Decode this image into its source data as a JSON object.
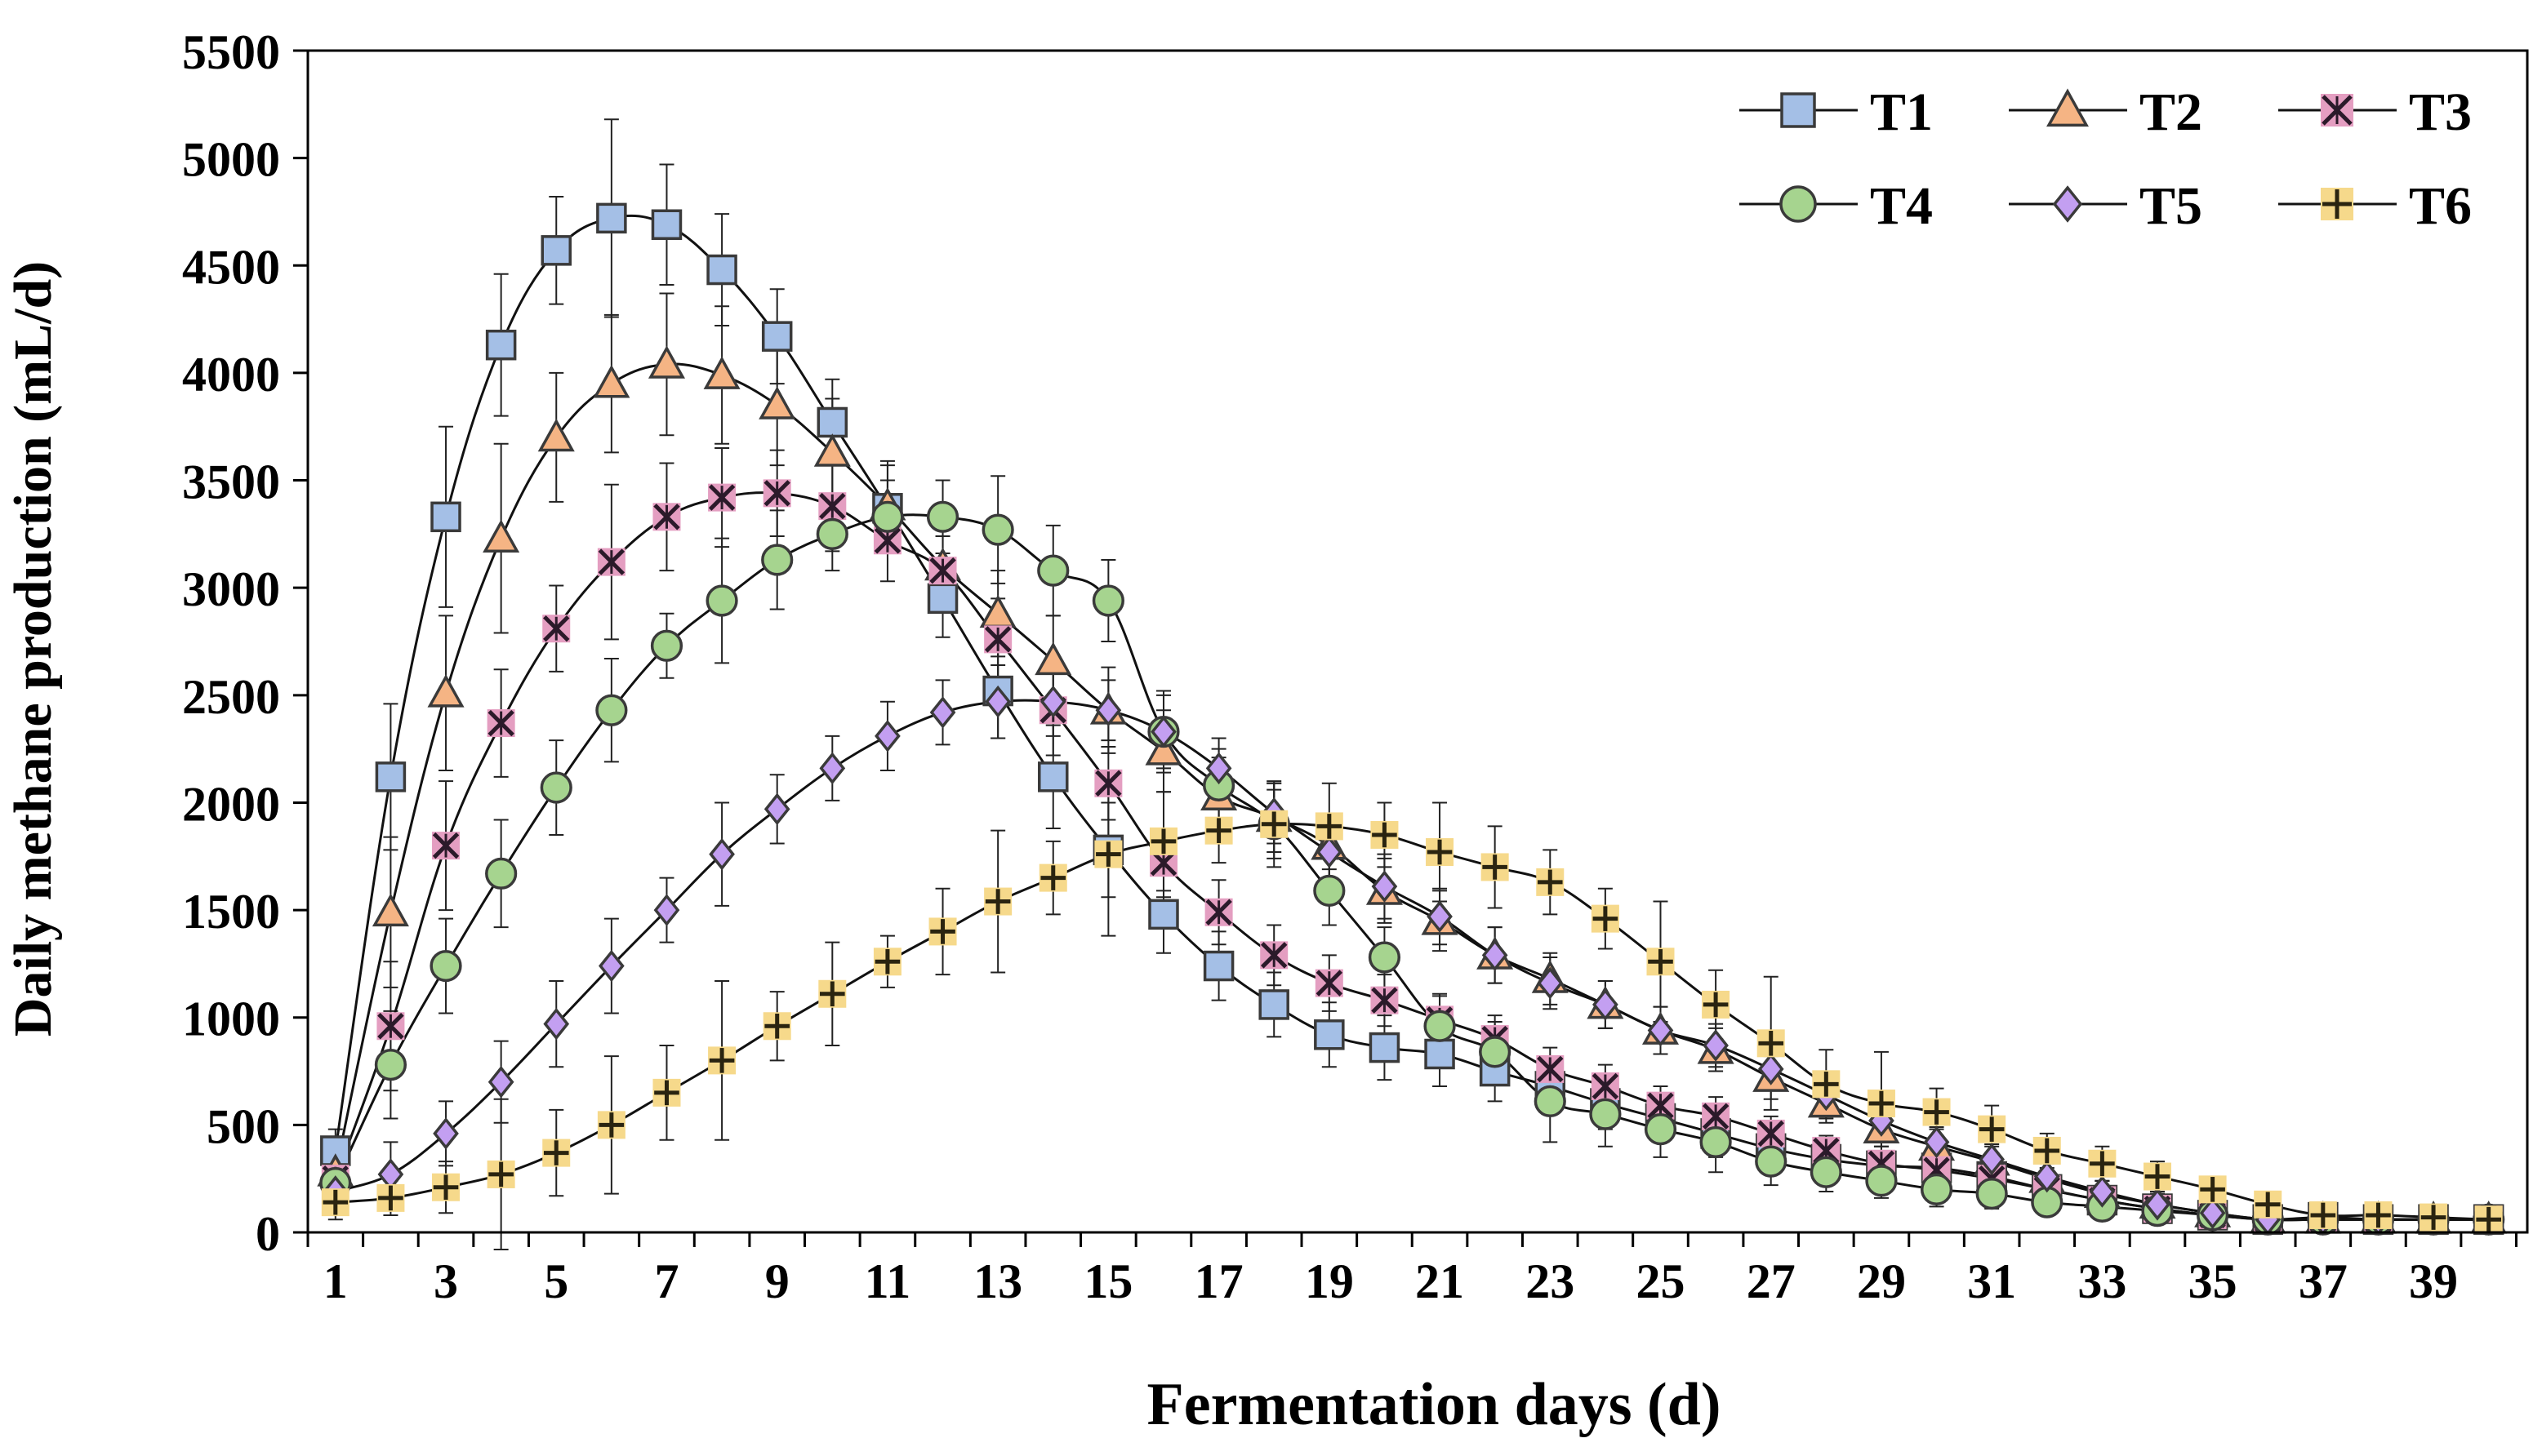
{
  "chart_data": {
    "type": "line",
    "title": "",
    "xlabel": "Fermentation days (d)",
    "ylabel": "Daily methane production (mL/d)",
    "xlim": [
      0.5,
      40.7
    ],
    "ylim": [
      0,
      5500
    ],
    "x_ticks": [
      1,
      3,
      5,
      7,
      9,
      11,
      13,
      15,
      17,
      19,
      21,
      23,
      25,
      27,
      29,
      31,
      33,
      35,
      37,
      39
    ],
    "y_ticks": [
      0,
      500,
      1000,
      1500,
      2000,
      2500,
      3000,
      3500,
      4000,
      4500,
      5000,
      5500
    ],
    "legend_position": "top-right",
    "grid": false,
    "x": [
      1,
      2,
      3,
      4,
      5,
      6,
      7,
      8,
      9,
      10,
      11,
      12,
      13,
      14,
      15,
      16,
      17,
      18,
      19,
      20,
      21,
      22,
      23,
      24,
      25,
      26,
      27,
      28,
      29,
      30,
      31,
      32,
      33,
      34,
      35,
      36,
      37,
      38,
      39,
      40
    ],
    "series": [
      {
        "name": "T1",
        "marker": "square",
        "fill": "#a4bfe6",
        "stroke": "#3a3a3a",
        "values": [
          380,
          2120,
          3330,
          4130,
          4570,
          4720,
          4690,
          4480,
          4170,
          3770,
          3370,
          2950,
          2520,
          2120,
          1780,
          1480,
          1240,
          1060,
          920,
          860,
          830,
          750,
          680,
          600,
          530,
          460,
          390,
          340,
          310,
          300,
          260,
          200,
          150,
          110,
          80,
          60,
          70,
          60,
          60,
          60
        ],
        "errors": [
          100,
          340,
          420,
          330,
          250,
          460,
          280,
          260,
          220,
          200,
          200,
          180,
          220,
          240,
          220,
          180,
          160,
          150,
          150,
          150,
          150,
          140,
          130,
          120,
          110,
          110,
          100,
          90,
          90,
          80,
          80,
          70,
          60,
          50,
          40,
          30,
          30,
          30,
          30,
          30
        ]
      },
      {
        "name": "T2",
        "marker": "triangle",
        "fill": "#f5b484",
        "stroke": "#3a3a3a",
        "values": [
          280,
          1490,
          2510,
          3230,
          3700,
          3950,
          4040,
          3990,
          3850,
          3630,
          3380,
          3100,
          2880,
          2660,
          2430,
          2240,
          2030,
          1930,
          1800,
          1590,
          1450,
          1290,
          1180,
          1060,
          940,
          850,
          720,
          600,
          480,
          400,
          330,
          250,
          180,
          130,
          90,
          60,
          60,
          60,
          60,
          60
        ],
        "errors": [
          120,
          350,
          360,
          440,
          300,
          320,
          330,
          320,
          280,
          250,
          210,
          190,
          200,
          210,
          200,
          190,
          180,
          160,
          150,
          150,
          140,
          130,
          120,
          110,
          110,
          100,
          100,
          90,
          80,
          80,
          70,
          70,
          60,
          50,
          40,
          30,
          30,
          30,
          30,
          30
        ]
      },
      {
        "name": "T3",
        "marker": "xstar",
        "fill": "#e49ec1",
        "stroke": "#3a3a3a",
        "values": [
          250,
          960,
          1800,
          2370,
          2810,
          3120,
          3330,
          3420,
          3440,
          3380,
          3220,
          3080,
          2760,
          2430,
          2090,
          1720,
          1490,
          1290,
          1160,
          1080,
          990,
          900,
          760,
          680,
          590,
          540,
          460,
          380,
          320,
          290,
          250,
          200,
          150,
          110,
          80,
          60,
          60,
          60,
          60,
          60
        ],
        "errors": [
          150,
          300,
          300,
          250,
          200,
          360,
          250,
          230,
          200,
          210,
          190,
          160,
          190,
          210,
          170,
          160,
          150,
          140,
          130,
          120,
          120,
          110,
          100,
          100,
          90,
          90,
          80,
          70,
          60,
          60,
          60,
          50,
          50,
          40,
          40,
          30,
          30,
          30,
          30,
          30
        ]
      },
      {
        "name": "T4",
        "marker": "circle",
        "fill": "#a6d48f",
        "stroke": "#3a3a3a",
        "values": [
          230,
          780,
          1240,
          1670,
          2070,
          2430,
          2730,
          2940,
          3130,
          3250,
          3330,
          3330,
          3270,
          3080,
          2940,
          2330,
          2080,
          1900,
          1590,
          1280,
          960,
          840,
          610,
          550,
          480,
          420,
          330,
          280,
          240,
          200,
          180,
          140,
          120,
          100,
          80,
          60,
          60,
          60,
          60,
          60
        ],
        "errors": [
          100,
          250,
          220,
          250,
          220,
          240,
          150,
          290,
          230,
          170,
          170,
          170,
          250,
          210,
          190,
          190,
          170,
          160,
          160,
          140,
          140,
          140,
          190,
          150,
          130,
          140,
          110,
          90,
          80,
          80,
          70,
          60,
          50,
          40,
          30,
          30,
          30,
          30,
          30,
          30
        ]
      },
      {
        "name": "T5",
        "marker": "diamond",
        "fill": "#c39ff1",
        "stroke": "#3a3a3a",
        "values": [
          190,
          270,
          460,
          700,
          970,
          1240,
          1500,
          1760,
          1970,
          2160,
          2310,
          2420,
          2470,
          2470,
          2430,
          2330,
          2160,
          1950,
          1770,
          1610,
          1470,
          1290,
          1160,
          1060,
          940,
          870,
          760,
          640,
          520,
          420,
          340,
          260,
          190,
          130,
          90,
          60,
          60,
          60,
          60,
          60
        ],
        "errors": [
          80,
          150,
          150,
          190,
          200,
          220,
          150,
          240,
          160,
          150,
          160,
          150,
          170,
          160,
          140,
          170,
          140,
          140,
          150,
          150,
          130,
          130,
          120,
          110,
          110,
          100,
          100,
          90,
          80,
          70,
          70,
          60,
          50,
          40,
          30,
          30,
          30,
          30,
          30,
          30
        ]
      },
      {
        "name": "T6",
        "marker": "plus",
        "fill": "#f6d98b",
        "stroke": "#3a3a3a",
        "values": [
          140,
          160,
          210,
          270,
          370,
          500,
          650,
          800,
          960,
          1110,
          1260,
          1400,
          1540,
          1650,
          1760,
          1820,
          1870,
          1900,
          1890,
          1850,
          1770,
          1700,
          1630,
          1460,
          1260,
          1060,
          880,
          690,
          600,
          560,
          480,
          380,
          320,
          260,
          200,
          130,
          80,
          80,
          70,
          60
        ],
        "errors": [
          80,
          80,
          120,
          350,
          200,
          320,
          220,
          370,
          160,
          240,
          120,
          200,
          330,
          170,
          380,
          230,
          150,
          200,
          200,
          150,
          230,
          190,
          150,
          140,
          280,
          160,
          310,
          160,
          240,
          110,
          110,
          80,
          80,
          70,
          60,
          50,
          40,
          40,
          40,
          40
        ]
      }
    ]
  }
}
